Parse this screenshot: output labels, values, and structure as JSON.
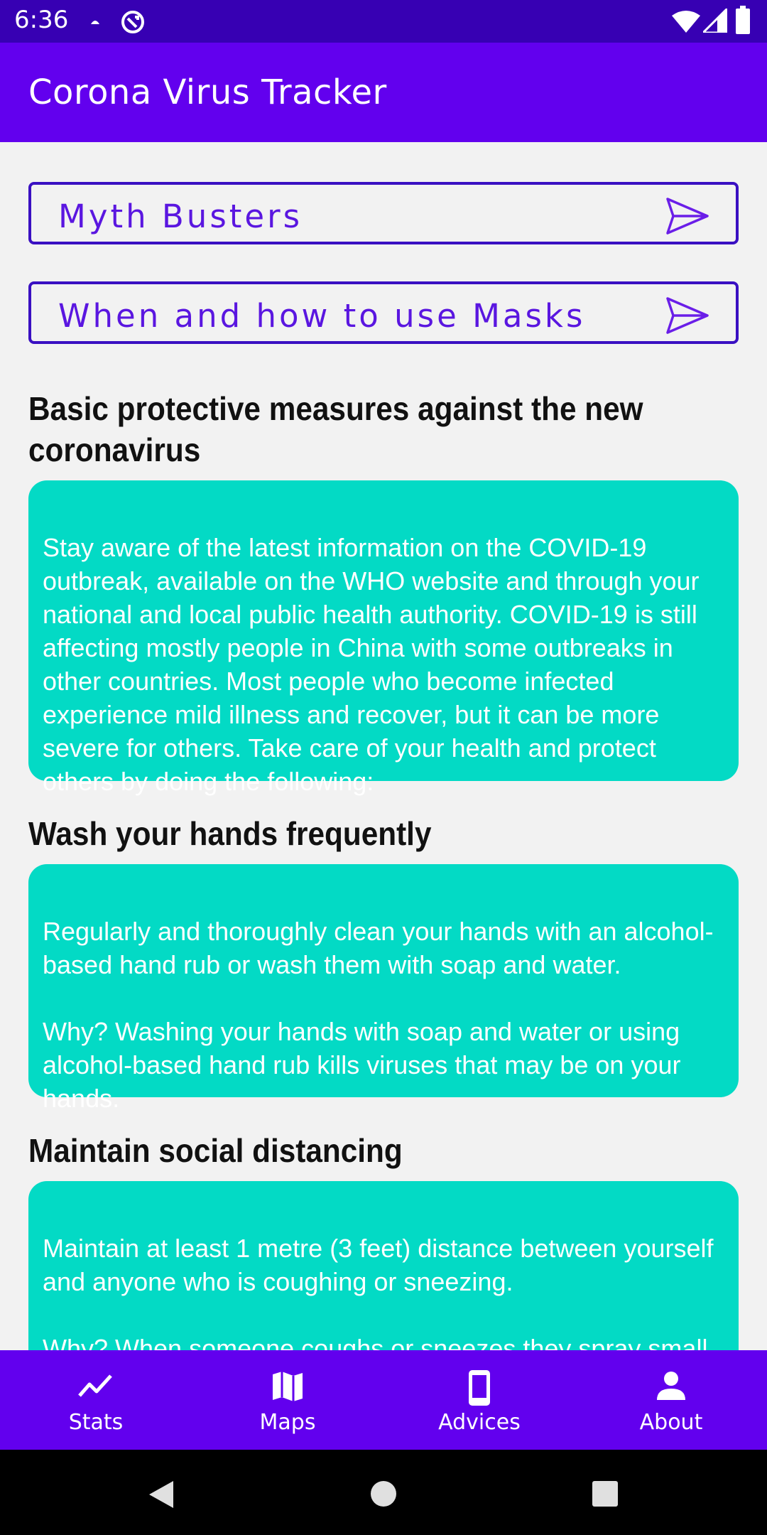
{
  "status_bar": {
    "time": "6:36"
  },
  "app_bar": {
    "title": "Corona Virus Tracker"
  },
  "links": [
    {
      "label": "Myth Busters"
    },
    {
      "label": "When and how to use Masks"
    }
  ],
  "sections": [
    {
      "heading": "Basic protective measures against the new coronavirus",
      "body": "Stay aware of the latest information on the COVID-19 outbreak, available on the WHO website and through your national and local public health authority. COVID-19 is still affecting mostly people in China with some outbreaks in other countries. Most people who become infected experience mild illness and recover, but it can be more severe for others. Take care of your health and protect others by doing the following:"
    },
    {
      "heading": "Wash your hands frequently",
      "body": "Regularly and thoroughly clean your hands with an alcohol-based hand rub or wash them with soap and water.\n\nWhy? Washing your hands with soap and water or using alcohol-based hand rub kills viruses that may be on your hands."
    },
    {
      "heading": "Maintain social distancing",
      "body": "Maintain at least 1 metre (3 feet) distance between yourself and anyone who is coughing or sneezing.\n\nWhy? When someone coughs or sneezes they spray small liquid droplets from their nose or mouth which may contain virus."
    }
  ],
  "bottom_nav": [
    {
      "label": "Stats",
      "icon": "trending-up-icon"
    },
    {
      "label": "Maps",
      "icon": "map-icon"
    },
    {
      "label": "Advices",
      "icon": "phone-icon"
    },
    {
      "label": "About",
      "icon": "person-icon"
    }
  ],
  "colors": {
    "status_bar": "#3700b3",
    "primary": "#6200ee",
    "card": "#03dac5",
    "button_border": "#3a10c2"
  }
}
